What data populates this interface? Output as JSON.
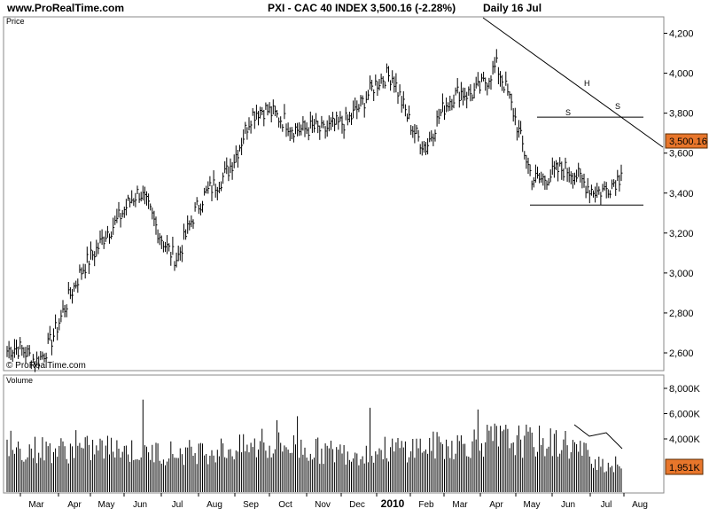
{
  "header": {
    "site": "www.ProRealTime.com",
    "title": "PXI - CAC 40 INDEX    3,500.16 (-2.28%)",
    "period": "Daily  16 Jul"
  },
  "price_panel": {
    "label": "Price",
    "watermark": "© ProRealTime.com",
    "last_value": "3,500.16"
  },
  "volume_panel": {
    "label": "Volume",
    "last_value": "1,951K"
  },
  "x_axis": {
    "labels": [
      "Mar",
      "Apr",
      "May",
      "Jun",
      "Jul",
      "Aug",
      "Sep",
      "Oct",
      "Nov",
      "Dec",
      "2010",
      "Feb",
      "Mar",
      "Apr",
      "May",
      "Jun",
      "Jul",
      "Aug"
    ]
  },
  "pattern_labels": {
    "left_shoulder": "S",
    "head": "H",
    "right_shoulder": "S"
  },
  "chart_data": [
    {
      "type": "line",
      "title": "PXI - CAC 40 INDEX",
      "ylabel": "Price",
      "ylim": [
        2450,
        4260
      ],
      "y_ticks": [
        "2,600",
        "2,800",
        "3,000",
        "3,200",
        "3,400",
        "3,600",
        "3,800",
        "4,000",
        "4,200"
      ],
      "x": [
        "Mar",
        "Apr",
        "May",
        "Jun",
        "Jul",
        "Aug",
        "Sep",
        "Oct",
        "Nov",
        "Dec",
        "2010",
        "Feb",
        "Mar",
        "Apr",
        "May",
        "Jun",
        "Jul"
      ],
      "values": [
        2580,
        2890,
        3250,
        3360,
        3100,
        3440,
        3760,
        3800,
        3660,
        3860,
        3960,
        3640,
        3910,
        4010,
        3520,
        3470,
        3450
      ],
      "last": 3500.16,
      "annotations": {
        "pattern": "head and shoulders",
        "neckline": 3340,
        "range_top": 3780,
        "trendline": "descending from Apr 2010 high"
      }
    },
    {
      "type": "bar",
      "ylabel": "Volume",
      "ylim": [
        0,
        9000
      ],
      "y_ticks": [
        "4,000K",
        "6,000K",
        "8,000K"
      ],
      "values_k": [
        3200,
        3100,
        3300,
        3000,
        2900,
        3100,
        3300,
        3500,
        3000,
        2900,
        3200,
        3400,
        3600,
        4000,
        3800,
        3600,
        1951
      ],
      "last": "1,951K"
    }
  ]
}
